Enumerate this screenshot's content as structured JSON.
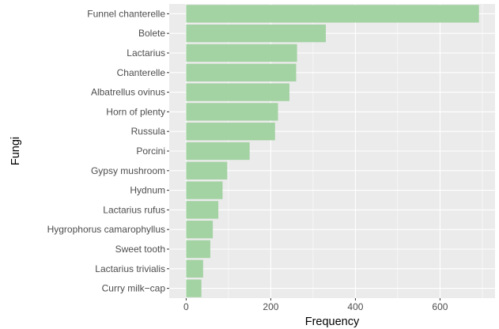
{
  "chart_data": {
    "type": "bar",
    "orientation": "horizontal",
    "xlabel": "Frequency",
    "ylabel": "Fungi",
    "categories": [
      "Funnel chanterelle",
      "Bolete",
      "Lactarius",
      "Chanterelle",
      "Albatrellus ovinus",
      "Horn of plenty",
      "Russula",
      "Porcini",
      "Gypsy mushroom",
      "Hydnum",
      "Lactarius rufus",
      "Hygrophorus camarophyllus",
      "Sweet tooth",
      "Lactarius trivialis",
      "Curry milk−cap"
    ],
    "values": [
      692,
      330,
      262,
      260,
      244,
      217,
      210,
      150,
      97,
      86,
      76,
      63,
      57,
      40,
      36
    ],
    "xlim": [
      -40,
      730
    ],
    "xticks": [
      0,
      200,
      400,
      600
    ],
    "xtick_labels": [
      "0",
      "200",
      "400",
      "600"
    ],
    "grid": true,
    "bar_color": "#a3d2a3",
    "panel_color": "#ebebeb",
    "grid_color": "#ffffff"
  }
}
